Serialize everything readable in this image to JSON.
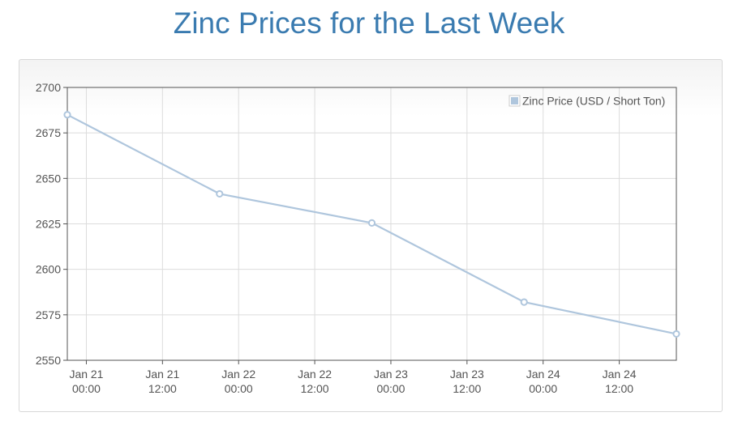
{
  "title": "Zinc Prices for the Last Week",
  "chart_data": {
    "type": "line",
    "title": "Zinc Prices for the Last Week",
    "xlabel": "",
    "ylabel": "",
    "ylim": [
      2550,
      2700
    ],
    "xlim": [
      "Jan 20 21:00",
      "Jan 24 21:00"
    ],
    "y_ticks": [
      2550,
      2575,
      2600,
      2625,
      2650,
      2675,
      2700
    ],
    "x_ticks": [
      {
        "at": "Jan 21 00:00",
        "line1": "Jan 21",
        "line2": "00:00"
      },
      {
        "at": "Jan 21 12:00",
        "line1": "Jan 21",
        "line2": "12:00"
      },
      {
        "at": "Jan 22 00:00",
        "line1": "Jan 22",
        "line2": "00:00"
      },
      {
        "at": "Jan 22 12:00",
        "line1": "Jan 22",
        "line2": "12:00"
      },
      {
        "at": "Jan 23 00:00",
        "line1": "Jan 23",
        "line2": "00:00"
      },
      {
        "at": "Jan 23 12:00",
        "line1": "Jan 23",
        "line2": "12:00"
      },
      {
        "at": "Jan 24 00:00",
        "line1": "Jan 24",
        "line2": "00:00"
      },
      {
        "at": "Jan 24 12:00",
        "line1": "Jan 24",
        "line2": "12:00"
      }
    ],
    "grid": true,
    "legend_position": "top-right",
    "series": [
      {
        "name": "Zinc Price (USD / Short Ton)",
        "color": "#afc6dd",
        "points": [
          {
            "x": "Jan 20 21:00",
            "y": 2685
          },
          {
            "x": "Jan 21 21:00",
            "y": 2641.5
          },
          {
            "x": "Jan 22 21:00",
            "y": 2625.5
          },
          {
            "x": "Jan 23 21:00",
            "y": 2582
          },
          {
            "x": "Jan 24 21:00",
            "y": 2564.5
          }
        ]
      }
    ]
  }
}
